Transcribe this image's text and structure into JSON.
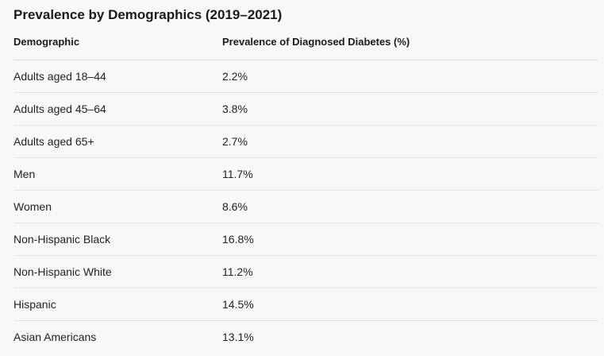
{
  "heading": "Prevalence by Demographics (2019–2021)",
  "table": {
    "columns": [
      "Demographic",
      "Prevalence of Diagnosed Diabetes (%)"
    ],
    "rows": [
      {
        "demographic": "Adults aged 18–44",
        "prevalence": "2.2%"
      },
      {
        "demographic": "Adults aged 45–64",
        "prevalence": "3.8%"
      },
      {
        "demographic": "Adults aged 65+",
        "prevalence": "2.7%"
      },
      {
        "demographic": "Men",
        "prevalence": "11.7%"
      },
      {
        "demographic": "Women",
        "prevalence": "8.6%"
      },
      {
        "demographic": "Non-Hispanic Black",
        "prevalence": "16.8%"
      },
      {
        "demographic": "Non-Hispanic White",
        "prevalence": "11.2%"
      },
      {
        "demographic": "Hispanic",
        "prevalence": "14.5%"
      },
      {
        "demographic": "Asian Americans",
        "prevalence": "13.1%"
      }
    ]
  }
}
